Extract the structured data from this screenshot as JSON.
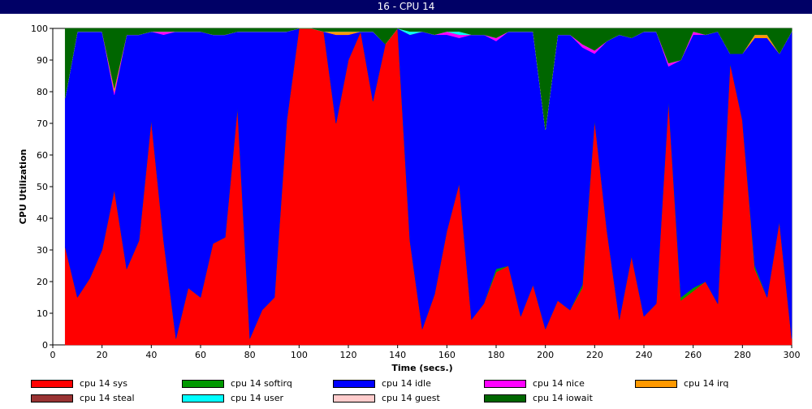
{
  "window": {
    "title": "16 - CPU 14"
  },
  "chart_data": {
    "type": "area",
    "stacked": true,
    "title": "16 - CPU 14",
    "xlabel": "Time (secs.)",
    "ylabel": "CPU Utilization",
    "xlim": [
      0,
      300
    ],
    "ylim": [
      0,
      100
    ],
    "xticks": [
      0,
      20,
      40,
      60,
      80,
      100,
      120,
      140,
      160,
      180,
      200,
      220,
      240,
      260,
      280,
      300
    ],
    "yticks": [
      0,
      10,
      20,
      30,
      40,
      50,
      60,
      70,
      80,
      90,
      100
    ],
    "grid": false,
    "legend_position": "bottom",
    "x": [
      5,
      10,
      15,
      20,
      25,
      30,
      35,
      40,
      45,
      50,
      55,
      60,
      65,
      70,
      75,
      80,
      85,
      90,
      95,
      100,
      105,
      110,
      115,
      120,
      125,
      130,
      135,
      140,
      145,
      150,
      155,
      160,
      165,
      170,
      175,
      180,
      185,
      190,
      195,
      200,
      205,
      210,
      215,
      220,
      225,
      230,
      235,
      240,
      245,
      250,
      255,
      260,
      265,
      270,
      275,
      280,
      285,
      290,
      295,
      300
    ],
    "series": [
      {
        "name": "cpu 14 sys",
        "color": "#ff0000",
        "values": [
          31,
          15,
          21,
          30,
          49,
          24,
          33,
          71,
          33,
          2,
          18,
          15,
          32,
          34,
          75,
          2,
          11,
          15,
          71,
          100,
          100,
          99,
          70,
          90,
          99,
          77,
          95,
          100,
          33,
          5,
          16,
          36,
          51,
          8,
          13,
          23,
          25,
          9,
          19,
          5,
          14,
          11,
          18,
          71,
          36,
          8,
          28,
          9,
          13,
          77,
          14,
          17,
          20,
          13,
          89,
          71,
          24,
          15,
          39,
          2
        ]
      },
      {
        "name": "cpu 14 softirq",
        "color": "#009900",
        "values": [
          0,
          0,
          0,
          0,
          0,
          0,
          0,
          0,
          0,
          0,
          0,
          0,
          0,
          0,
          0,
          0,
          0,
          0,
          0,
          0,
          0,
          0,
          0,
          0,
          0,
          0,
          0,
          0,
          0,
          0,
          0,
          0,
          0,
          0,
          0,
          1,
          0,
          0,
          0,
          0,
          0,
          0,
          1,
          0,
          0,
          0,
          0,
          0,
          0,
          0,
          1,
          1,
          0,
          0,
          0,
          0,
          1,
          0,
          0,
          0
        ]
      },
      {
        "name": "cpu 14 idle",
        "color": "#0000ff",
        "values": [
          47,
          84,
          78,
          69,
          30,
          74,
          65,
          28,
          65,
          97,
          81,
          84,
          66,
          64,
          24,
          97,
          88,
          84,
          28,
          0,
          0,
          0,
          28,
          8,
          0,
          22,
          0,
          0,
          65,
          94,
          82,
          62,
          46,
          90,
          85,
          72,
          74,
          90,
          80,
          63,
          84,
          87,
          75,
          21,
          60,
          90,
          69,
          90,
          86,
          11,
          75,
          80,
          78,
          86,
          3,
          21,
          72,
          82,
          53,
          97
        ]
      },
      {
        "name": "cpu 14 nice",
        "color": "#ff00ff",
        "values": [
          0,
          0,
          0,
          0,
          1,
          0,
          0,
          0,
          1,
          0,
          0,
          0,
          0,
          0,
          0,
          0,
          0,
          0,
          0,
          0,
          0,
          0,
          0,
          0,
          0,
          0,
          0,
          1,
          0,
          0,
          0,
          1,
          1,
          0,
          0,
          1,
          0,
          0,
          0,
          0,
          0,
          0,
          1,
          1,
          0,
          0,
          0,
          0,
          0,
          1,
          0,
          1,
          0,
          0,
          0,
          0,
          0,
          0,
          0,
          0
        ]
      },
      {
        "name": "cpu 14 irq",
        "color": "#ff9900",
        "values": [
          0,
          0,
          0,
          0,
          1,
          0,
          0,
          0,
          0,
          0,
          0,
          0,
          0,
          0,
          0,
          0,
          0,
          0,
          0,
          0,
          0,
          0,
          1,
          1,
          0,
          0,
          0,
          0,
          0,
          0,
          0,
          0,
          0,
          0,
          0,
          0,
          0,
          0,
          0,
          0,
          0,
          0,
          0,
          0,
          0,
          0,
          0,
          0,
          0,
          0,
          0,
          0,
          0,
          0,
          0,
          0,
          1,
          1,
          0,
          0
        ]
      },
      {
        "name": "cpu 14 steal",
        "color": "#993333",
        "values": [
          0,
          0,
          0,
          0,
          0,
          0,
          0,
          0,
          0,
          0,
          0,
          0,
          0,
          0,
          0,
          0,
          0,
          0,
          0,
          0,
          0,
          0,
          0,
          0,
          0,
          0,
          0,
          0,
          0,
          0,
          0,
          0,
          0,
          0,
          0,
          0,
          0,
          0,
          0,
          0,
          0,
          0,
          0,
          0,
          0,
          0,
          0,
          0,
          0,
          0,
          0,
          0,
          0,
          0,
          0,
          0,
          0,
          0,
          0,
          0
        ]
      },
      {
        "name": "cpu 14 user",
        "color": "#00ffff",
        "values": [
          0,
          0,
          0,
          0,
          0,
          0,
          0,
          0,
          0,
          0,
          0,
          0,
          0,
          0,
          0,
          0,
          0,
          0,
          0,
          0,
          0,
          0,
          0,
          0,
          0,
          0,
          0,
          0,
          1,
          0,
          0,
          0,
          1,
          0,
          0,
          0,
          0,
          0,
          0,
          0,
          0,
          0,
          0,
          0,
          0,
          0,
          0,
          0,
          0,
          0,
          0,
          0,
          0,
          0,
          0,
          0,
          0,
          0,
          0,
          0
        ]
      },
      {
        "name": "cpu 14 guest",
        "color": "#ffcccc",
        "values": [
          0,
          0,
          0,
          0,
          0,
          0,
          0,
          0,
          0,
          0,
          0,
          0,
          0,
          0,
          0,
          0,
          0,
          0,
          0,
          0,
          0,
          0,
          0,
          0,
          0,
          0,
          0,
          0,
          0,
          0,
          0,
          0,
          0,
          0,
          0,
          0,
          0,
          0,
          0,
          0,
          0,
          0,
          0,
          0,
          0,
          0,
          0,
          0,
          0,
          0,
          0,
          0,
          0,
          0,
          0,
          0,
          0,
          0,
          0,
          0
        ]
      },
      {
        "name": "cpu 14 iowait",
        "color": "#006600",
        "values": [
          22,
          1,
          1,
          1,
          19,
          2,
          2,
          1,
          1,
          1,
          1,
          1,
          2,
          2,
          1,
          1,
          1,
          1,
          1,
          0,
          0,
          1,
          1,
          1,
          1,
          1,
          5,
          0,
          1,
          1,
          2,
          1,
          1,
          2,
          2,
          3,
          1,
          1,
          1,
          32,
          2,
          2,
          5,
          7,
          4,
          2,
          3,
          1,
          1,
          11,
          10,
          1,
          2,
          1,
          8,
          8,
          2,
          2,
          8,
          1
        ]
      }
    ]
  }
}
